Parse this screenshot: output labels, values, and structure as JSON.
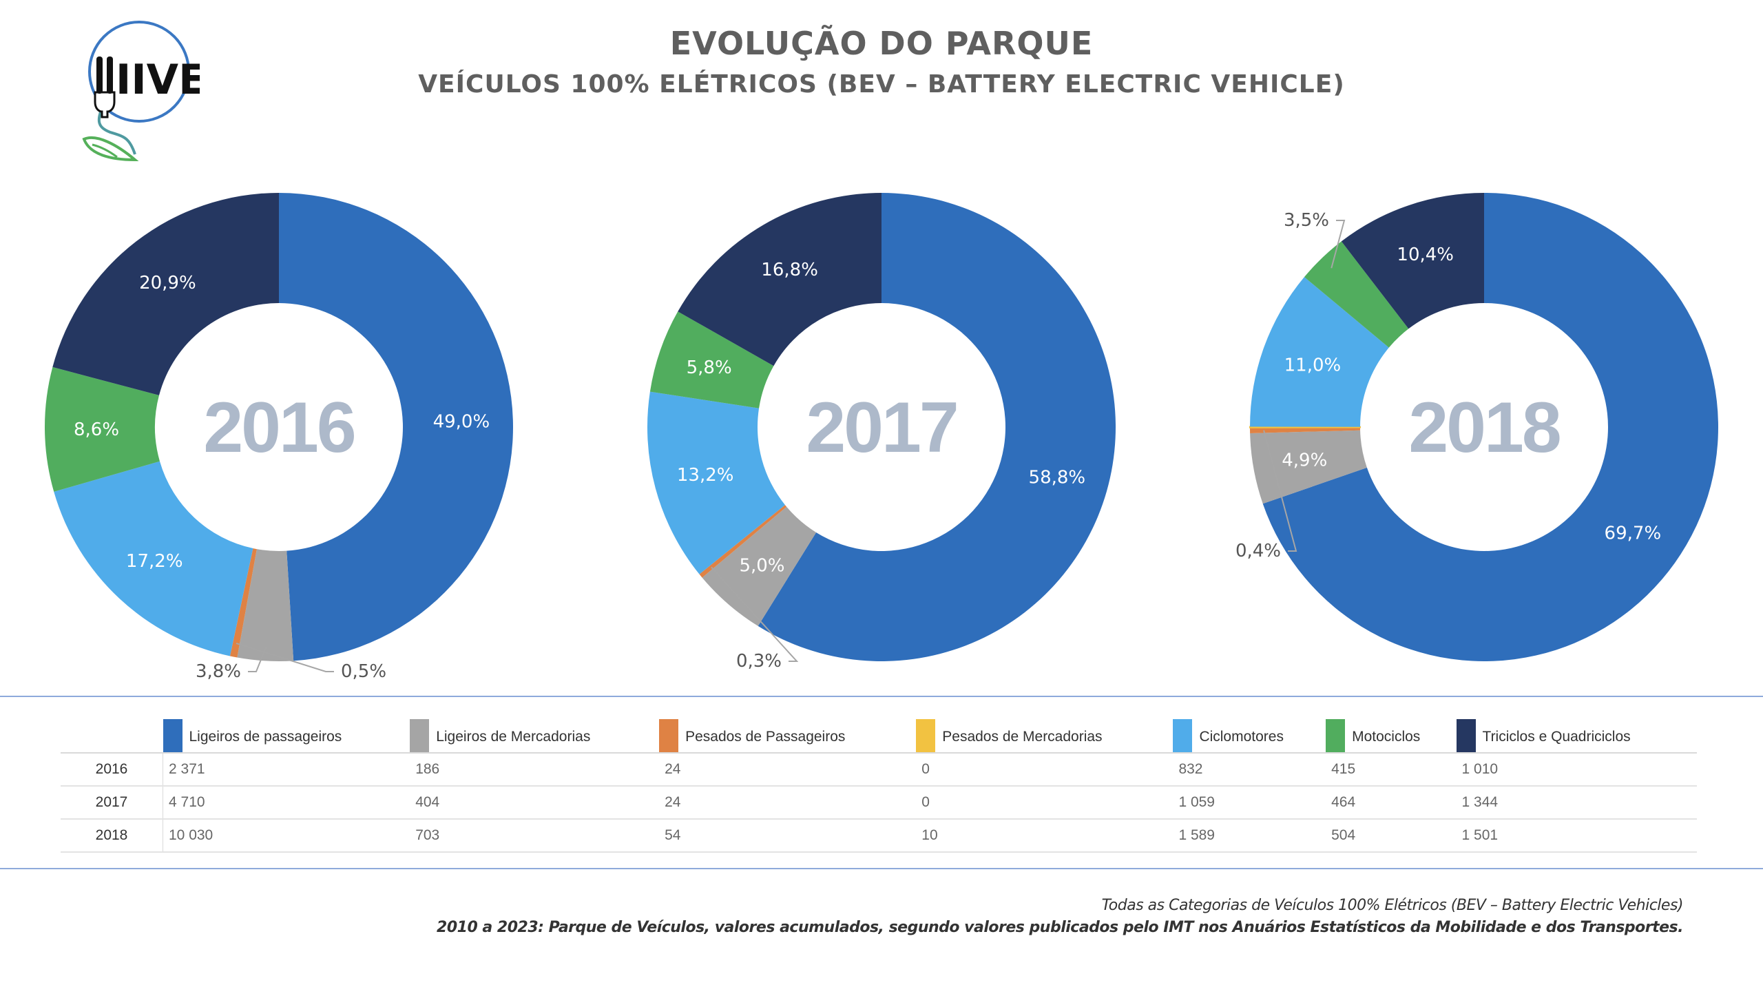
{
  "header": {
    "title": "EVOLUÇÃO DO PARQUE",
    "subtitle": "VEÍCULOS 100% ELÉTRICOS (BEV – BATTERY ELECTRIC VEHICLE)",
    "logo_text": "IIVE",
    "logo_icon": "plug-leaf-icon"
  },
  "colors": {
    "Ligeiros de passageiros": "#2f6ebb",
    "Ligeiros de Mercadorias": "#a5a5a5",
    "Pesados de Passageiros": "#df8244",
    "Pesados de Mercadorias": "#f2c241",
    "Ciclomotores": "#50acea",
    "Motociclos": "#51ad5e",
    "Triciclos e Quadriciclos": "#253761"
  },
  "chart_data": [
    {
      "type": "pie",
      "donut": true,
      "title": "2016",
      "categories": [
        "Ligeiros de passageiros",
        "Ligeiros de Mercadorias",
        "Pesados de Passageiros",
        "Pesados de Mercadorias",
        "Ciclomotores",
        "Motociclos",
        "Triciclos e Quadriciclos"
      ],
      "values": [
        2371,
        186,
        24,
        0,
        832,
        415,
        1010
      ],
      "labels": [
        "49,0%",
        "3,8%",
        "0,5%",
        "",
        "17,2%",
        "8,6%",
        "20,9%"
      ],
      "percent": [
        49.0,
        3.8,
        0.5,
        0.0,
        17.2,
        8.6,
        20.9
      ]
    },
    {
      "type": "pie",
      "donut": true,
      "title": "2017",
      "categories": [
        "Ligeiros de passageiros",
        "Ligeiros de Mercadorias",
        "Pesados de Passageiros",
        "Pesados de Mercadorias",
        "Ciclomotores",
        "Motociclos",
        "Triciclos e Quadriciclos"
      ],
      "values": [
        4710,
        404,
        24,
        0,
        1059,
        464,
        1344
      ],
      "labels": [
        "58,8%",
        "5,0%",
        "0,3%",
        "",
        "13,2%",
        "5,8%",
        "16,8%"
      ],
      "percent": [
        58.8,
        5.0,
        0.3,
        0.0,
        13.2,
        5.8,
        16.8
      ]
    },
    {
      "type": "pie",
      "donut": true,
      "title": "2018",
      "categories": [
        "Ligeiros de passageiros",
        "Ligeiros de Mercadorias",
        "Pesados de Passageiros",
        "Pesados de Mercadorias",
        "Ciclomotores",
        "Motociclos",
        "Triciclos e Quadriciclos"
      ],
      "values": [
        10030,
        703,
        54,
        10,
        1589,
        504,
        1501
      ],
      "labels": [
        "69,7%",
        "4,9%",
        "0,4%",
        "",
        "11,0%",
        "3,5%",
        "10,4%"
      ],
      "percent": [
        69.7,
        4.9,
        0.4,
        0.1,
        11.0,
        3.5,
        10.4
      ]
    }
  ],
  "table": {
    "columns": [
      "Ligeiros de passageiros",
      "Ligeiros de Mercadorias",
      "Pesados de Passageiros",
      "Pesados de Mercadorias",
      "Ciclomotores",
      "Motociclos",
      "Triciclos e Quadriciclos"
    ],
    "rows": [
      {
        "year": "2016",
        "cells": [
          "2 371",
          "186",
          "24",
          "0",
          "832",
          "415",
          "1 010"
        ]
      },
      {
        "year": "2017",
        "cells": [
          "4 710",
          "404",
          "24",
          "0",
          "1 059",
          "464",
          "1 344"
        ]
      },
      {
        "year": "2018",
        "cells": [
          "10 030",
          "703",
          "54",
          "10",
          "1 589",
          "504",
          "1 501"
        ]
      }
    ]
  },
  "footer": {
    "note1": "Todas as Categorias de Veículos 100% Elétricos (BEV – Battery Electric Vehicles)",
    "note2": "2010 a 2023: Parque de Veículos, valores acumulados, segundo valores publicados pelo IMT nos Anuários Estatísticos da Mobilidade e dos Transportes."
  }
}
